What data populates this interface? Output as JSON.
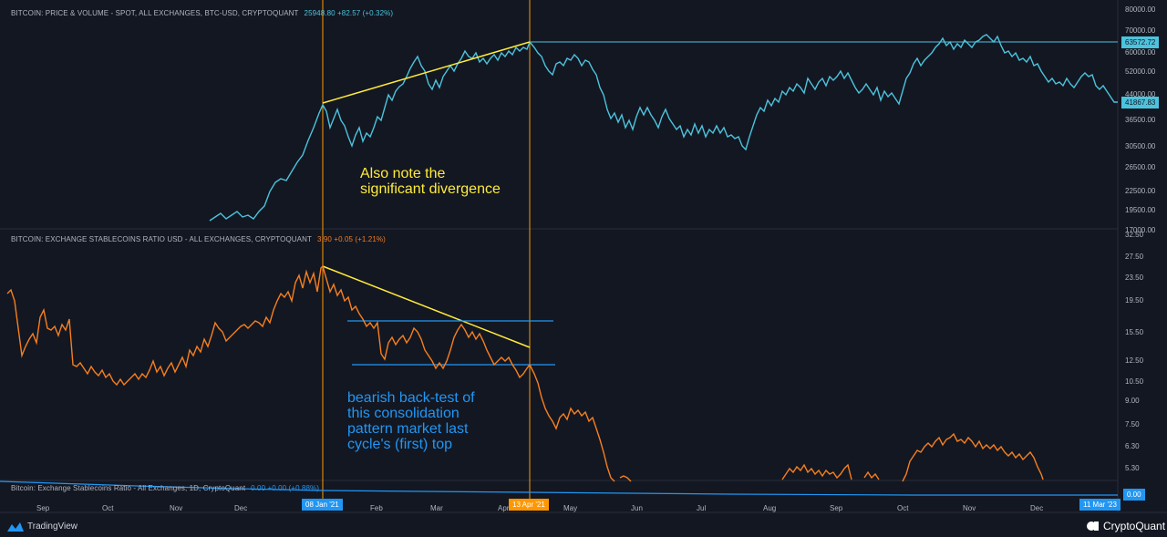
{
  "top_pane": {
    "title": "BITCOIN: PRICE & VOLUME - SPOT, ALL EXCHANGES, BTC-USD, CRYPTOQUANT",
    "value": "25948.80",
    "change": "+82.57 (+0.32%)"
  },
  "middle_pane": {
    "title": "BITCOIN: EXCHANGE STABLECOINS RATIO USD - ALL EXCHANGES, CRYPTOQUANT",
    "value": "3.90",
    "change": "+0.05 (+1.21%)"
  },
  "bottom_pane": {
    "title": "Bitcoin: Exchange Stablecoins Ratio - All Exchanges, 1D, CryptoQuant",
    "value": "0.00",
    "change": "+0.00 (+0.88%)",
    "axis_label": "0.00"
  },
  "annotations": {
    "divergence": [
      "Also note the",
      "significant divergence"
    ],
    "backtest": [
      "bearish back-test of",
      "this consolidation",
      "pattern market last",
      "cycle's (first) top"
    ]
  },
  "price_tags": {
    "high": "63572.72",
    "current": "41867.83"
  },
  "date_tags": {
    "jan": "08 Jan '21",
    "apr": "13 Apr '21",
    "end": "11 Mar '23"
  },
  "branding": {
    "left": "TradingView",
    "right": "CryptoQuant"
  },
  "colors": {
    "price": "#4cc3dd",
    "ratio": "#f57f20",
    "bottom": "#2196f3",
    "trend": "#ffeb3b",
    "channel": "#2196f3",
    "marker": "#ff9800"
  },
  "chart_data": [
    {
      "type": "line",
      "title": "BITCOIN: PRICE & VOLUME - SPOT, ALL EXCHANGES, BTC-USD, CRYPTOQUANT",
      "series": [
        {
          "name": "BTC-USD",
          "x": [
            "Sep",
            "Oct",
            "Nov",
            "Dec",
            "08 Jan '21",
            "Feb",
            "Mar",
            "Apr",
            "13 Apr '21",
            "May",
            "Jun",
            "Jul",
            "Aug",
            "Sep",
            "Oct",
            "Nov",
            "Dec",
            "11 Mar '23"
          ],
          "values": [
            null,
            null,
            null,
            18800,
            41500,
            33500,
            56500,
            58000,
            63572,
            57000,
            36000,
            33500,
            40000,
            47500,
            56000,
            61000,
            49000,
            41868
          ]
        }
      ],
      "y_ticks": [
        "80000.00",
        "70000.00",
        "60000.00",
        "52000.00",
        "44000.00",
        "36500.00",
        "30500.00",
        "26500.00",
        "22500.00",
        "19500.00",
        "17000.00"
      ],
      "x_ticks": [
        "Sep",
        "Oct",
        "Nov",
        "Dec",
        "Feb",
        "Mar",
        "Apr",
        "May",
        "Jun",
        "Jul",
        "Aug",
        "Sep",
        "Oct",
        "Nov",
        "Dec"
      ]
    },
    {
      "type": "line",
      "title": "BITCOIN: EXCHANGE STABLECOINS RATIO USD - ALL EXCHANGES, CRYPTOQUANT",
      "series": [
        {
          "name": "Exchange Stablecoins Ratio",
          "x": [
            "Sep",
            "Oct",
            "Nov",
            "Dec",
            "08 Jan '21",
            "Feb",
            "Mar",
            "Apr",
            "13 Apr '21",
            "May",
            "Jun",
            "Jul",
            "Aug",
            "Sep",
            "Oct",
            "Nov",
            "Dec"
          ],
          "values": [
            15.8,
            11.0,
            11.7,
            16.5,
            27.6,
            15.0,
            14.3,
            12.8,
            11.5,
            8.5,
            5.0,
            3.5,
            5.3,
            5.4,
            5.6,
            6.8,
            5.8
          ]
        }
      ],
      "y_ticks": [
        "32.50",
        "27.50",
        "23.50",
        "19.50",
        "15.50",
        "12.50",
        "10.50",
        "9.00",
        "7.50",
        "6.30",
        "5.30"
      ],
      "channel": {
        "upper": 16.6,
        "lower": 12.1
      }
    }
  ]
}
